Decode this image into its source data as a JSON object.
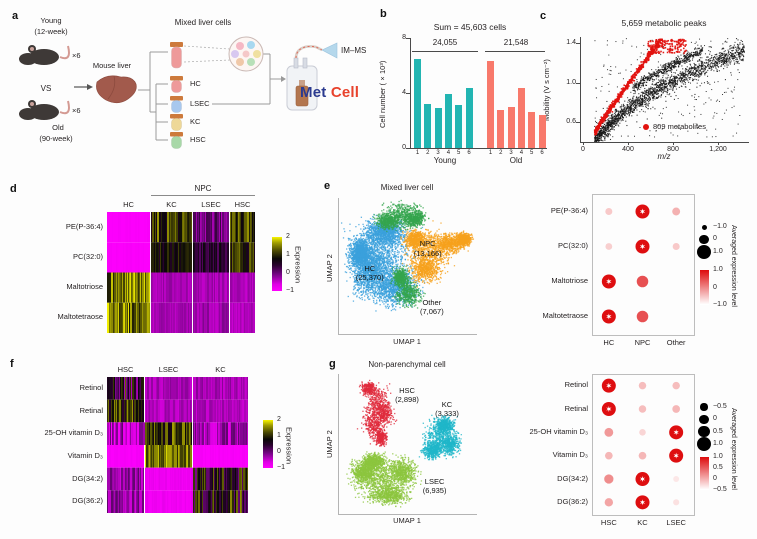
{
  "colors": {
    "teal_bar": "#22b5b2",
    "salmon_bar": "#f8796b",
    "red_dot": "#e1120f",
    "umap_hc_blue": "#3ba0dc",
    "umap_npc_orange": "#f6a11d",
    "umap_other_green": "#35a54d",
    "umap_hsc_red": "#e02a3c",
    "umap_kc_teal": "#1fb6c9",
    "umap_lsec_green": "#8cc63f",
    "logo_blue": "#2b3a8f",
    "logo_red": "#e8432d"
  },
  "panel_a": {
    "label": "a",
    "young": "Young",
    "young_weeks": "(12-week)",
    "times6_top": "×6",
    "vs": "VS",
    "times6_bottom": "×6",
    "old": "Old",
    "old_weeks": "(90-week)",
    "mouse_liver": "Mouse liver",
    "mixed_title": "Mixed liver cells",
    "tube_labels": [
      "HC",
      "LSEC",
      "KC",
      "HSC"
    ],
    "imms": "IM–MS",
    "logo_met": "Met",
    "logo_cell": "Cell"
  },
  "panel_b": {
    "label": "b"
  },
  "panel_c": {
    "label": "c"
  },
  "panel_d": {
    "label": "d"
  },
  "panel_e": {
    "label": "e"
  },
  "panel_f": {
    "label": "f"
  },
  "panel_g": {
    "label": "g"
  },
  "chart_data": [
    {
      "id": "b",
      "type": "bar",
      "title": "Sum = 45,603 cells",
      "ylabel": "Cell number (×10³)",
      "ylim": [
        0,
        8
      ],
      "yticks": [
        8,
        4,
        0
      ],
      "groups": [
        {
          "label": "Young",
          "total": "24,055",
          "color": "#22b5b2",
          "categories": [
            "1",
            "2",
            "3",
            "4",
            "5",
            "6"
          ],
          "values": [
            6.5,
            3.2,
            2.9,
            3.9,
            3.1,
            4.4
          ]
        },
        {
          "label": "Old",
          "total": "21,548",
          "color": "#f8796b",
          "categories": [
            "1",
            "2",
            "3",
            "4",
            "5",
            "6"
          ],
          "values": [
            6.3,
            2.8,
            3.0,
            4.4,
            2.6,
            2.4
          ]
        }
      ]
    },
    {
      "id": "c",
      "type": "scatter",
      "title": "5,659 metabolic peaks",
      "xlabel": "m/z",
      "ylabel": "Mobility (V s cm⁻²)",
      "xlim": [
        0,
        1450
      ],
      "ylim": [
        0.41,
        1.46
      ],
      "xticks": [
        {
          "v": 0,
          "t": "0"
        },
        {
          "v": 400,
          "t": "400"
        },
        {
          "v": 800,
          "t": "800"
        },
        {
          "v": 1200,
          "t": "1,200"
        }
      ],
      "yticks": [
        {
          "v": 1.4,
          "t": "1.4"
        },
        {
          "v": 1.0,
          "t": "1.0"
        },
        {
          "v": 0.6,
          "t": "0.6"
        }
      ],
      "series": [
        {
          "name": "metabolic peaks",
          "color": "#161616",
          "count": 2700
        },
        {
          "name": "annotated metabolites",
          "color": "#e1120f",
          "count": 780
        }
      ],
      "legend": {
        "label": "809 metabolites",
        "color": "#e1120f"
      }
    },
    {
      "id": "d",
      "type": "heatmap",
      "group_header": {
        "label": "NPC"
      },
      "cols": [
        "HC",
        "KC",
        "LSEC",
        "HSC"
      ],
      "rows": [
        "PE(P-36:4)",
        "PC(32:0)",
        "Maltotriose",
        "Maltotetraose"
      ],
      "values": [
        [
          -1,
          1.1,
          -0.05,
          1.1
        ],
        [
          -1,
          0.8,
          0.45,
          1.0
        ],
        [
          1.45,
          -0.35,
          -0.35,
          -0.4
        ],
        [
          1.45,
          -0.35,
          -0.3,
          -0.4
        ]
      ],
      "noise": [
        [
          0.04,
          0.5,
          0.35,
          0.5
        ],
        [
          0.04,
          0.35,
          0.3,
          0.4
        ],
        [
          0.45,
          0.12,
          0.12,
          0.12
        ],
        [
          0.5,
          0.12,
          0.18,
          0.12
        ]
      ],
      "colorbar": {
        "label": "Expression",
        "ticks": [
          "2",
          "1",
          "0",
          "−1"
        ],
        "vmax": 2,
        "vmin": -1
      }
    },
    {
      "id": "e_umap",
      "type": "scatter-umap",
      "title": "Mixed liver cell",
      "xlabel": "UMAP 1",
      "ylabel": "UMAP 2",
      "clusters": [
        {
          "name": "HC",
          "count": "(25,370)",
          "color": "#3ba0dc",
          "n": 5200,
          "label_x": 0.23,
          "label_y": 0.52,
          "blobs": [
            [
              0.3,
              0.42,
              0.2,
              0.22
            ],
            [
              0.22,
              0.55,
              0.12,
              0.15
            ],
            [
              0.4,
              0.65,
              0.15,
              0.12
            ],
            [
              0.33,
              0.25,
              0.13,
              0.08
            ],
            [
              0.15,
              0.4,
              0.07,
              0.1
            ]
          ]
        },
        {
          "name": "NPC",
          "count": "(13,166)",
          "color": "#f6a11d",
          "n": 3000,
          "label_x": 0.65,
          "label_y": 0.34,
          "blobs": [
            [
              0.66,
              0.38,
              0.14,
              0.13
            ],
            [
              0.8,
              0.33,
              0.1,
              0.06
            ],
            [
              0.62,
              0.52,
              0.1,
              0.08
            ],
            [
              0.9,
              0.3,
              0.05,
              0.04
            ],
            [
              0.55,
              0.3,
              0.07,
              0.06
            ]
          ]
        },
        {
          "name": "Other",
          "count": "(7,067)",
          "color": "#35a54d",
          "n": 2200,
          "label_x": 0.68,
          "label_y": 0.77,
          "blobs": [
            [
              0.45,
              0.12,
              0.12,
              0.08
            ],
            [
              0.35,
              0.17,
              0.07,
              0.05
            ],
            [
              0.55,
              0.15,
              0.06,
              0.05
            ],
            [
              0.5,
              0.7,
              0.08,
              0.08
            ],
            [
              0.44,
              0.58,
              0.05,
              0.06
            ]
          ]
        }
      ]
    },
    {
      "id": "e_dot",
      "type": "dotplot",
      "rows": [
        "PE(P-36:4)",
        "PC(32:0)",
        "Maltotriose",
        "Maltotetraose"
      ],
      "cols": [
        "HC",
        "NPC",
        "Other"
      ],
      "dots": [
        [
          {
            "v": -0.55
          },
          {
            "v": 1,
            "star": true
          },
          {
            "v": -0.35
          }
        ],
        [
          {
            "v": -0.6
          },
          {
            "v": 1,
            "star": true
          },
          {
            "v": -0.55
          }
        ],
        [
          {
            "v": 1,
            "star": true
          },
          {
            "v": 0.45
          },
          null
        ],
        [
          {
            "v": 1,
            "star": true
          },
          {
            "v": 0.45
          },
          null
        ]
      ],
      "size_legend": {
        "values": [
          -1,
          0,
          1
        ],
        "labels": [
          "−1.0",
          "0",
          "1.0"
        ]
      },
      "color_legend": {
        "ticks": [
          "1.0",
          "0",
          "−1.0"
        ]
      },
      "legend_label": "Averaged expression level"
    },
    {
      "id": "f",
      "type": "heatmap",
      "cols": [
        "HSC",
        "LSEC",
        "KC"
      ],
      "rows": [
        "Retinol",
        "Retinal",
        "25-OH vitamin D₃",
        "Vitamin D₃",
        "DG(34:2)",
        "DG(36:2)"
      ],
      "values": [
        [
          0.5,
          -0.35,
          -0.35
        ],
        [
          1.0,
          -0.4,
          -0.4
        ],
        [
          -0.45,
          1.2,
          -0.35
        ],
        [
          -0.95,
          1.5,
          -0.95
        ],
        [
          -0.25,
          -0.85,
          0.7
        ],
        [
          -0.25,
          -0.85,
          0.8
        ]
      ],
      "noise": [
        [
          0.8,
          0.15,
          0.15
        ],
        [
          0.6,
          0.15,
          0.15
        ],
        [
          0.45,
          0.5,
          0.35
        ],
        [
          0.04,
          0.4,
          0.04
        ],
        [
          0.3,
          0.08,
          0.7
        ],
        [
          0.3,
          0.08,
          0.7
        ]
      ],
      "colorbar": {
        "label": "Expression",
        "ticks": [
          "2",
          "1",
          "0",
          "−1"
        ],
        "vmax": 2,
        "vmin": -1
      }
    },
    {
      "id": "g_umap",
      "type": "scatter-umap",
      "title": "Non-parenchymal cell",
      "xlabel": "UMAP 1",
      "ylabel": "UMAP 2",
      "clusters": [
        {
          "name": "HSC",
          "count": "(2,898)",
          "color": "#e02a3c",
          "n": 1500,
          "label_x": 0.5,
          "label_y": 0.12,
          "blobs": [
            [
              0.27,
              0.2,
              0.08,
              0.1
            ],
            [
              0.24,
              0.35,
              0.07,
              0.09
            ],
            [
              0.32,
              0.28,
              0.06,
              0.07
            ],
            [
              0.21,
              0.1,
              0.05,
              0.04
            ],
            [
              0.3,
              0.45,
              0.04,
              0.05
            ]
          ]
        },
        {
          "name": "KC",
          "count": "(3,333)",
          "color": "#1fb6c9",
          "n": 1800,
          "label_x": 0.79,
          "label_y": 0.22,
          "blobs": [
            [
              0.72,
              0.44,
              0.1,
              0.1
            ],
            [
              0.8,
              0.5,
              0.07,
              0.07
            ],
            [
              0.67,
              0.54,
              0.06,
              0.05
            ],
            [
              0.76,
              0.36,
              0.06,
              0.05
            ]
          ]
        },
        {
          "name": "LSEC",
          "count": "(6,935)",
          "color": "#8cc63f",
          "n": 3200,
          "label_x": 0.7,
          "label_y": 0.77,
          "blobs": [
            [
              0.3,
              0.74,
              0.17,
              0.12
            ],
            [
              0.45,
              0.7,
              0.1,
              0.09
            ],
            [
              0.18,
              0.7,
              0.08,
              0.07
            ],
            [
              0.36,
              0.86,
              0.12,
              0.06
            ],
            [
              0.25,
              0.62,
              0.07,
              0.05
            ]
          ]
        }
      ]
    },
    {
      "id": "g_dot",
      "type": "dotplot",
      "rows": [
        "Retinol",
        "Retinal",
        "25-OH vitamin D₃",
        "Vitamin D₃",
        "DG(34:2)",
        "DG(36:2)"
      ],
      "cols": [
        "HSC",
        "KC",
        "LSEC"
      ],
      "dots": [
        [
          {
            "v": 1,
            "star": true
          },
          {
            "v": -0.45
          },
          {
            "v": -0.45
          }
        ],
        [
          {
            "v": 1,
            "star": true
          },
          {
            "v": -0.45
          },
          {
            "v": -0.4
          }
        ],
        [
          {
            "v": -0.15
          },
          {
            "v": -0.65
          },
          {
            "v": 1,
            "star": true
          }
        ],
        [
          {
            "v": -0.4
          },
          {
            "v": -0.4
          },
          {
            "v": 1,
            "star": true
          }
        ],
        [
          {
            "v": -0.05
          },
          {
            "v": 1,
            "star": true
          },
          {
            "v": -0.8
          }
        ],
        [
          {
            "v": -0.25
          },
          {
            "v": 1,
            "star": true
          },
          {
            "v": -0.75
          }
        ]
      ],
      "size_legend": {
        "values": [
          -0.5,
          0,
          0.5,
          1
        ],
        "labels": [
          "−0.5",
          "0",
          "0.5",
          "1.0"
        ]
      },
      "color_legend": {
        "ticks": [
          "1.0",
          "0.5",
          "0",
          "−0.5"
        ]
      },
      "legend_label": "Averaged expression level"
    }
  ]
}
